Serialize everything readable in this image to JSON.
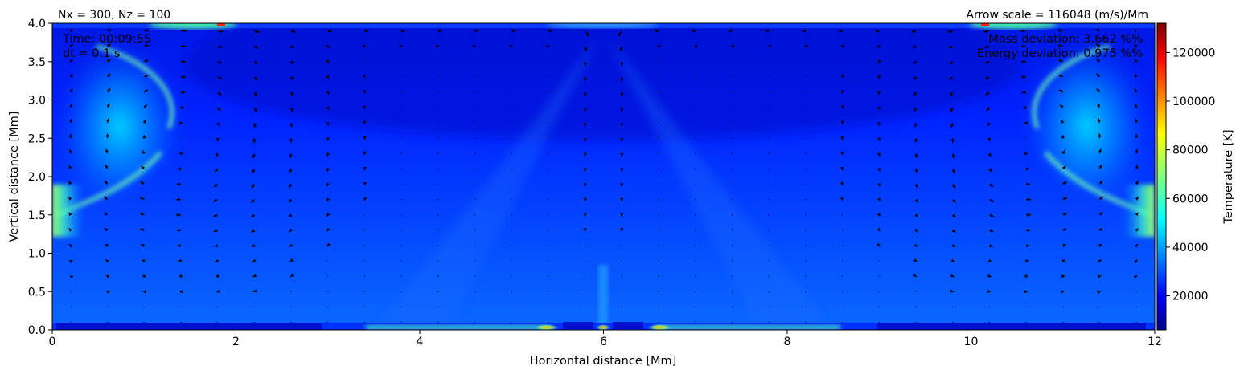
{
  "chart_data": {
    "type": "heatmap",
    "title_left": "Nx = 300, Nz = 100",
    "title_right": "Arrow scale = 116048 (m/s)/Mm",
    "annotations": {
      "time": "Time: 00:09:55",
      "dt": "dt = 0.1 s",
      "mass_deviation": "Mass deviation: 3.662 %%",
      "energy_deviation": "Energy deviation: 0.975 %%"
    },
    "xlabel": "Horizontal distance [Mm]",
    "ylabel": "Vertical distance [Mm]",
    "xlim": [
      0,
      12
    ],
    "ylim": [
      0,
      4
    ],
    "xticks": [
      0,
      2,
      4,
      6,
      8,
      10,
      12
    ],
    "xtick_labels": [
      "0",
      "2",
      "4",
      "6",
      "8",
      "10",
      "12"
    ],
    "yticks": [
      0,
      0.5,
      1,
      1.5,
      2,
      2.5,
      3,
      3.5,
      4
    ],
    "ytick_labels": [
      "0.0",
      "0.5",
      "1.0",
      "1.5",
      "2.0",
      "2.5",
      "3.0",
      "3.5",
      "4.0"
    ],
    "colorbar": {
      "label": "Temperature [K]",
      "colormap": "jet",
      "range": [
        6000,
        132000
      ],
      "ticks": [
        20000,
        40000,
        60000,
        80000,
        100000,
        120000
      ],
      "tick_labels": [
        "20000",
        "40000",
        "60000",
        "80000",
        "100000",
        "120000"
      ]
    },
    "grid": false
  }
}
